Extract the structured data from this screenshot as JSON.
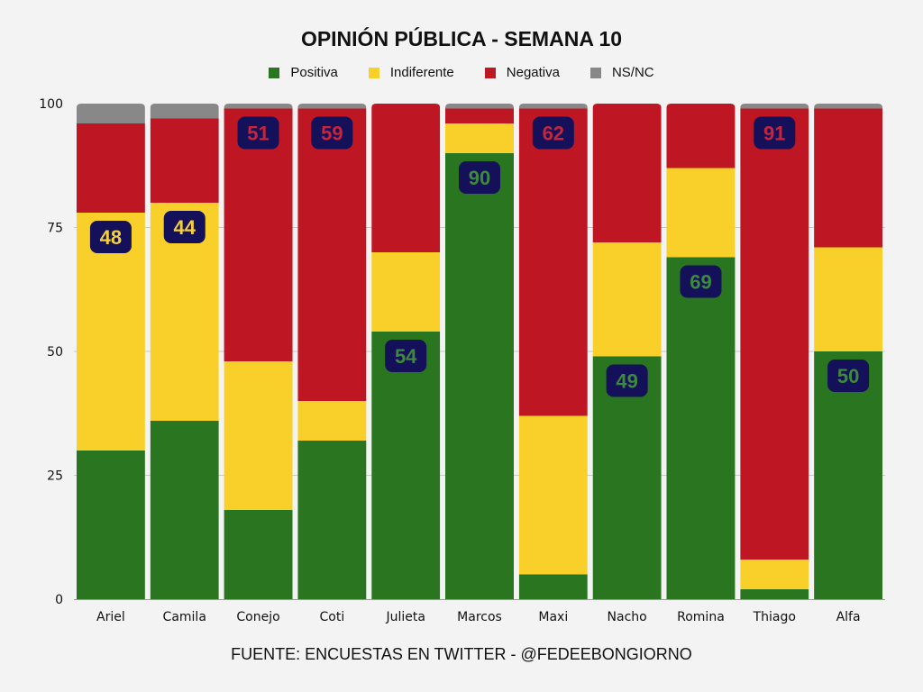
{
  "chart_data": {
    "type": "bar",
    "stacked": true,
    "title": "OPINIÓN PÚBLICA - SEMANA 10",
    "source": "FUENTE: ENCUESTAS EN TWITTER - @FEDEEBONGIORNO",
    "categories": [
      "Ariel",
      "Camila",
      "Conejo",
      "Coti",
      "Julieta",
      "Marcos",
      "Maxi",
      "Nacho",
      "Romina",
      "Thiago",
      "Alfa"
    ],
    "series": [
      {
        "name": "Positiva",
        "color": "#2a7520",
        "values": [
          30,
          36,
          18,
          32,
          54,
          90,
          5,
          49,
          69,
          2,
          50
        ]
      },
      {
        "name": "Indiferente",
        "color": "#f9d02a",
        "values": [
          48,
          44,
          30,
          8,
          16,
          6,
          32,
          23,
          18,
          6,
          21
        ]
      },
      {
        "name": "Negativa",
        "color": "#be1622",
        "values": [
          18,
          17,
          51,
          59,
          30,
          3,
          62,
          28,
          13,
          91,
          28
        ]
      },
      {
        "name": "NS/NC",
        "color": "#888888",
        "values": [
          4,
          3,
          1,
          1,
          0,
          1,
          1,
          0,
          0,
          1,
          1
        ]
      }
    ],
    "highlight_labels": [
      {
        "category": "Ariel",
        "series": "Indiferente",
        "text": "48"
      },
      {
        "category": "Camila",
        "series": "Indiferente",
        "text": "44"
      },
      {
        "category": "Conejo",
        "series": "Negativa",
        "text": "51"
      },
      {
        "category": "Coti",
        "series": "Negativa",
        "text": "59"
      },
      {
        "category": "Julieta",
        "series": "Positiva",
        "text": "54"
      },
      {
        "category": "Marcos",
        "series": "Positiva",
        "text": "90"
      },
      {
        "category": "Maxi",
        "series": "Negativa",
        "text": "62"
      },
      {
        "category": "Nacho",
        "series": "Positiva",
        "text": "49"
      },
      {
        "category": "Romina",
        "series": "Positiva",
        "text": "69"
      },
      {
        "category": "Thiago",
        "series": "Negativa",
        "text": "91"
      },
      {
        "category": "Alfa",
        "series": "Positiva",
        "text": "50"
      }
    ],
    "label_box_color": "#15105a",
    "ylim": [
      0,
      100
    ],
    "yticks": [
      0,
      25,
      50,
      75,
      100
    ],
    "grid": true,
    "legend_position": "top"
  }
}
